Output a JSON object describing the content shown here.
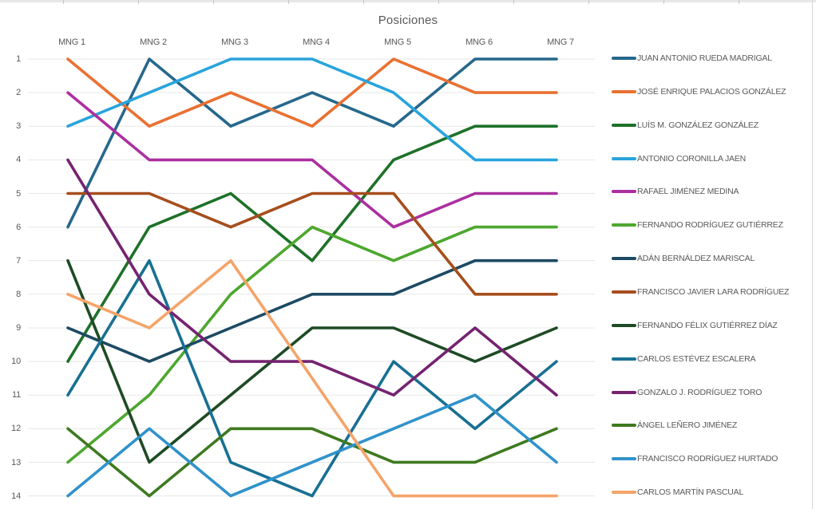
{
  "chart_data": {
    "type": "line",
    "title": "Posiciones",
    "xlabel": "",
    "ylabel": "",
    "categories": [
      "MNG 1",
      "MNG 2",
      "MNG 3",
      "MNG 4",
      "MNG 5",
      "MNG 6",
      "MNG 7"
    ],
    "y_ticks": [
      "1",
      "2",
      "3",
      "4",
      "5",
      "6",
      "7",
      "8",
      "9",
      "10",
      "11",
      "12",
      "13",
      "14"
    ],
    "y_axis": {
      "min": 1,
      "max": 14,
      "inverted": true,
      "meaning": "position/rank, 1 = best"
    },
    "grid": true,
    "legend_position": "right",
    "series": [
      {
        "name": "JUAN ANTONIO RUEDA MADRIGAL",
        "color": "#26688C",
        "values": [
          6,
          1,
          3,
          2,
          3,
          1,
          1
        ]
      },
      {
        "name": "JOSÉ ENRIQUE PALACIOS GONZÁLEZ",
        "color": "#E97132",
        "values": [
          1,
          3,
          2,
          3,
          1,
          2,
          2
        ]
      },
      {
        "name": "LUÍS M. GONZÁLEZ GONZÁLEZ",
        "color": "#1E7128",
        "values": [
          10,
          6,
          5,
          7,
          4,
          3,
          3
        ]
      },
      {
        "name": "ANTONIO CORONILLA JAEN",
        "color": "#29A4DC",
        "values": [
          3,
          2,
          1,
          1,
          2,
          4,
          4
        ]
      },
      {
        "name": "RAFAEL JIMÉNEZ MEDINA",
        "color": "#AC2FA0",
        "values": [
          2,
          4,
          4,
          4,
          6,
          5,
          5
        ]
      },
      {
        "name": "FERNANDO RODRÍGUEZ GUTIÉRREZ",
        "color": "#4DA72E",
        "values": [
          13,
          11,
          8,
          6,
          7,
          6,
          6
        ]
      },
      {
        "name": "ADÁN BERNÁLDEZ MARISCAL",
        "color": "#1D4A63",
        "values": [
          9,
          10,
          9,
          8,
          8,
          7,
          7
        ]
      },
      {
        "name": "FRANCISCO JAVIER LARA RODRÍGUEZ",
        "color": "#A64E1D",
        "values": [
          5,
          5,
          6,
          5,
          5,
          8,
          8
        ]
      },
      {
        "name": "FERNANDO FÉLIX GUTIÉRREZ DÍAZ",
        "color": "#1E4B24",
        "values": [
          7,
          13,
          11,
          9,
          9,
          10,
          9
        ]
      },
      {
        "name": "CARLOS ESTÉVEZ ESCALERA",
        "color": "#187092",
        "values": [
          11,
          7,
          13,
          14,
          10,
          12,
          10
        ]
      },
      {
        "name": "GONZALO J. RODRÍGUEZ TORO",
        "color": "#752370",
        "values": [
          4,
          8,
          10,
          10,
          11,
          9,
          11
        ]
      },
      {
        "name": "ÁNGEL LEÑERO JIMÉNEZ",
        "color": "#3E7A20",
        "values": [
          12,
          14,
          12,
          12,
          13,
          13,
          12
        ]
      },
      {
        "name": "FRANCISCO RODRÍGUEZ HURTADO",
        "color": "#3092CB",
        "values": [
          14,
          12,
          14,
          13,
          12,
          11,
          13
        ]
      },
      {
        "name": "CARLOS MARTÍN PASCUAL",
        "color": "#F4A469",
        "values": [
          8,
          9,
          7,
          null,
          14,
          14,
          14
        ]
      }
    ]
  }
}
